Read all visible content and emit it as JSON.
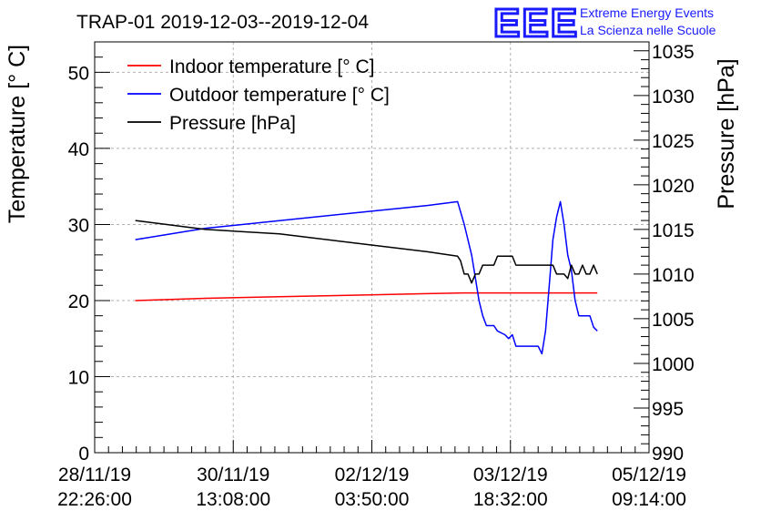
{
  "header": {
    "title": "TRAP-01 2019-12-03--2019-12-04"
  },
  "logo": {
    "mark": "EEE",
    "line1": "Extreme Energy Events",
    "line2": "La Scienza nelle Scuole",
    "color": "#1a1aff"
  },
  "chart_data": {
    "type": "line",
    "title": "TRAP-01 2019-12-03--2019-12-04",
    "ylabel": "Temperature [° C]",
    "y2label": "Pressure [hPa]",
    "ylim": [
      0,
      54
    ],
    "y2lim": [
      990,
      1036
    ],
    "xlim": [
      0,
      150
    ],
    "grid": true,
    "legend_position": "top-left",
    "x_ticks": [
      {
        "x": 0,
        "line1": "28/11/19",
        "line2": "22:26:00"
      },
      {
        "x": 37.5,
        "line1": "30/11/19",
        "line2": "13:08:00"
      },
      {
        "x": 75,
        "line1": "02/12/19",
        "line2": "03:50:00"
      },
      {
        "x": 112.5,
        "line1": "03/12/19",
        "line2": "18:32:00"
      },
      {
        "x": 150,
        "line1": "05/12/19",
        "line2": "09:14:00"
      }
    ],
    "y_ticks": [
      0,
      10,
      20,
      30,
      40,
      50
    ],
    "y2_ticks": [
      990,
      995,
      1000,
      1005,
      1010,
      1015,
      1020,
      1025,
      1030,
      1035
    ],
    "series": [
      {
        "name": "Indoor temperature [° C]",
        "color": "#ff0000",
        "axis": "left",
        "points": [
          [
            11,
            20
          ],
          [
            30,
            20.3
          ],
          [
            50,
            20.5
          ],
          [
            70,
            20.7
          ],
          [
            90,
            20.9
          ],
          [
            100,
            21.0
          ],
          [
            110,
            21.0
          ],
          [
            125,
            21.0
          ],
          [
            131,
            21.0
          ],
          [
            136,
            21.0
          ]
        ]
      },
      {
        "name": "Outdoor temperature [° C]",
        "color": "#0000ff",
        "axis": "left",
        "points": [
          [
            11,
            28
          ],
          [
            30,
            29.5
          ],
          [
            50,
            30.5
          ],
          [
            70,
            31.5
          ],
          [
            90,
            32.5
          ],
          [
            98.2,
            33
          ],
          [
            100,
            30
          ],
          [
            102,
            26
          ],
          [
            103,
            23
          ],
          [
            104,
            20
          ],
          [
            105,
            18
          ],
          [
            106,
            16.7
          ],
          [
            108,
            16.7
          ],
          [
            109,
            16
          ],
          [
            111,
            15.5
          ],
          [
            112,
            15
          ],
          [
            113,
            15.5
          ],
          [
            114,
            14
          ],
          [
            118,
            14
          ],
          [
            120,
            14
          ],
          [
            121,
            13
          ],
          [
            122,
            16
          ],
          [
            123,
            22
          ],
          [
            124,
            28
          ],
          [
            125,
            31
          ],
          [
            126,
            33
          ],
          [
            127,
            30
          ],
          [
            128,
            26
          ],
          [
            129,
            24
          ],
          [
            130,
            20
          ],
          [
            131,
            18
          ],
          [
            134,
            18
          ],
          [
            135,
            16.5
          ],
          [
            136,
            16
          ]
        ]
      },
      {
        "name": "Pressure [hPa]",
        "color": "#000000",
        "axis": "right",
        "points": [
          [
            11,
            1016
          ],
          [
            30,
            1015
          ],
          [
            50,
            1014.5
          ],
          [
            70,
            1013.5
          ],
          [
            90,
            1012.5
          ],
          [
            98.2,
            1012
          ],
          [
            99,
            1011.5
          ],
          [
            100,
            1010
          ],
          [
            101,
            1010
          ],
          [
            102,
            1009
          ],
          [
            103,
            1010
          ],
          [
            104,
            1010
          ],
          [
            105,
            1011
          ],
          [
            106,
            1011
          ],
          [
            107,
            1011
          ],
          [
            108,
            1011
          ],
          [
            109,
            1012
          ],
          [
            110,
            1012
          ],
          [
            111,
            1012
          ],
          [
            112,
            1012
          ],
          [
            113,
            1012
          ],
          [
            114,
            1011
          ],
          [
            119,
            1011
          ],
          [
            120,
            1011
          ],
          [
            121,
            1011
          ],
          [
            122,
            1011
          ],
          [
            123,
            1011
          ],
          [
            124,
            1011
          ],
          [
            125,
            1010
          ],
          [
            126,
            1010
          ],
          [
            127,
            1010
          ],
          [
            128,
            1009.5
          ],
          [
            129,
            1011
          ],
          [
            130,
            1010
          ],
          [
            131,
            1010
          ],
          [
            132,
            1011
          ],
          [
            133,
            1010
          ],
          [
            134,
            1010
          ],
          [
            135,
            1011
          ],
          [
            136,
            1010
          ]
        ]
      }
    ]
  }
}
